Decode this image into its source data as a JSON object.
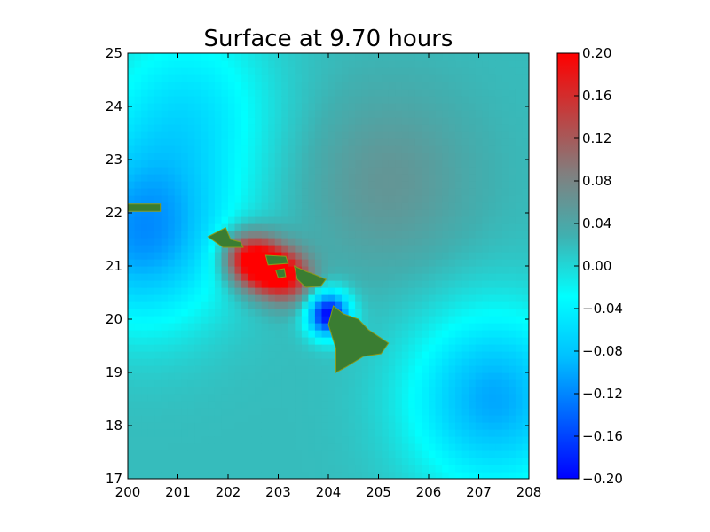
{
  "chart_data": {
    "type": "heatmap",
    "title": "Surface at 9.70 hours",
    "xlabel": "",
    "ylabel": "",
    "xlim": [
      200,
      208
    ],
    "ylim": [
      17,
      25
    ],
    "xticks": [
      "200",
      "201",
      "202",
      "203",
      "204",
      "205",
      "206",
      "207",
      "208"
    ],
    "yticks": [
      "17",
      "18",
      "19",
      "20",
      "21",
      "22",
      "23",
      "24",
      "25"
    ],
    "colorbar": {
      "range": [
        -0.2,
        0.2
      ],
      "ticks": [
        "−0.20",
        "−0.16",
        "−0.12",
        "−0.08",
        "−0.04",
        "0.00",
        "0.04",
        "0.08",
        "0.12",
        "0.16",
        "0.20"
      ],
      "colormap": [
        "#0000ff",
        "#0060ff",
        "#00c0ff",
        "#00ffff",
        "#40b0b0",
        "#808080",
        "#c04040",
        "#ff0000"
      ]
    },
    "land_color": "#3a7d32",
    "grid": false,
    "field_features": [
      {
        "kind": "background",
        "x": 204,
        "y": 21,
        "value": 0.02
      },
      {
        "kind": "depression",
        "x": 200.3,
        "y": 21.6,
        "value": -0.11
      },
      {
        "kind": "depression",
        "x": 204.0,
        "y": 20.1,
        "value": -0.2
      },
      {
        "kind": "depression",
        "x": 207.3,
        "y": 18.5,
        "value": -0.1
      },
      {
        "kind": "depression",
        "x": 201.2,
        "y": 24.0,
        "value": -0.05
      },
      {
        "kind": "elevated",
        "x": 205.2,
        "y": 22.6,
        "value": 0.06
      },
      {
        "kind": "elevated",
        "x": 202.7,
        "y": 21.0,
        "value": 0.2
      },
      {
        "kind": "elevated",
        "x": 202.3,
        "y": 21.2,
        "value": 0.14
      },
      {
        "kind": "elevated",
        "x": 203.2,
        "y": 20.8,
        "value": 0.16
      }
    ],
    "islands": [
      {
        "name": "Niihau-Kauai",
        "polygon": [
          [
            200.0,
            22.17
          ],
          [
            200.65,
            22.17
          ],
          [
            200.65,
            22.03
          ],
          [
            200.0,
            22.03
          ]
        ]
      },
      {
        "name": "Oahu",
        "polygon": [
          [
            201.6,
            21.55
          ],
          [
            201.95,
            21.72
          ],
          [
            202.05,
            21.5
          ],
          [
            202.25,
            21.45
          ],
          [
            202.3,
            21.35
          ],
          [
            201.9,
            21.35
          ]
        ]
      },
      {
        "name": "Molokai",
        "polygon": [
          [
            202.75,
            21.2
          ],
          [
            203.15,
            21.18
          ],
          [
            203.2,
            21.05
          ],
          [
            202.8,
            21.02
          ]
        ]
      },
      {
        "name": "Lanai",
        "polygon": [
          [
            202.95,
            20.92
          ],
          [
            203.12,
            20.95
          ],
          [
            203.15,
            20.8
          ],
          [
            203.0,
            20.78
          ]
        ]
      },
      {
        "name": "Maui",
        "polygon": [
          [
            203.32,
            21.0
          ],
          [
            203.55,
            20.9
          ],
          [
            203.7,
            20.85
          ],
          [
            203.95,
            20.75
          ],
          [
            203.85,
            20.62
          ],
          [
            203.55,
            20.6
          ],
          [
            203.38,
            20.75
          ]
        ]
      },
      {
        "name": "Hawaii",
        "polygon": [
          [
            204.1,
            20.25
          ],
          [
            204.3,
            20.1
          ],
          [
            204.6,
            20.0
          ],
          [
            204.8,
            19.8
          ],
          [
            205.2,
            19.55
          ],
          [
            205.05,
            19.35
          ],
          [
            204.7,
            19.3
          ],
          [
            204.35,
            19.1
          ],
          [
            204.15,
            19.0
          ],
          [
            204.15,
            19.45
          ],
          [
            204.0,
            19.9
          ]
        ]
      }
    ]
  }
}
